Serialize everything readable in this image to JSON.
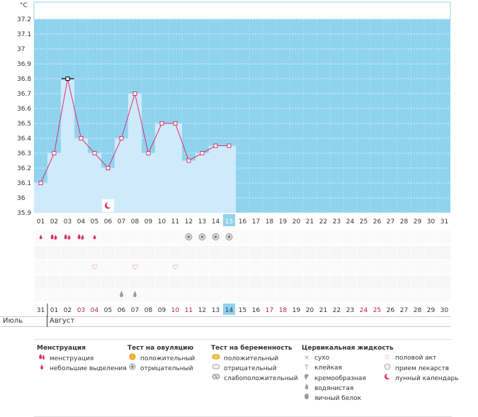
{
  "chart_data": {
    "type": "line",
    "y_unit": "°C",
    "ylim": [
      35.9,
      37.3
    ],
    "y_ticks": [
      "37.2",
      "37.1",
      "37",
      "36.9",
      "36.8",
      "36.7",
      "36.6",
      "36.5",
      "36.4",
      "36.3",
      "36.2",
      "36.1",
      "36",
      "35.9"
    ],
    "day_labels": [
      "01",
      "02",
      "03",
      "04",
      "05",
      "06",
      "07",
      "08",
      "09",
      "10",
      "11",
      "12",
      "13",
      "14",
      "15",
      "16",
      "17",
      "18",
      "19",
      "20",
      "21",
      "22",
      "23",
      "24",
      "25",
      "26",
      "27",
      "28",
      "29",
      "30",
      "31"
    ],
    "today_index": 14,
    "series": [
      {
        "values": [
          36.1,
          36.3,
          36.8,
          36.4,
          36.3,
          36.2,
          36.4,
          36.7,
          36.3,
          36.5,
          36.5,
          36.25,
          36.3,
          36.35,
          36.35
        ]
      }
    ],
    "grid": true,
    "background": "#8fd3ee",
    "line_color": "#d6336c",
    "bar_color": "#cfeafa"
  },
  "marks": {
    "menstruation": [
      0,
      1,
      2,
      3,
      4
    ],
    "menstruation_heavy": [
      1,
      2,
      3
    ],
    "lunar": [
      5
    ],
    "ovulation_negative": [
      11,
      12,
      13,
      14
    ],
    "intercourse": [
      4,
      7,
      10
    ],
    "cervical_watery": [
      6,
      7
    ]
  },
  "cycle_days": [
    {
      "label": "31",
      "red": false
    },
    {
      "label": "01",
      "red": false
    },
    {
      "label": "02",
      "red": false
    },
    {
      "label": "03",
      "red": true
    },
    {
      "label": "04",
      "red": true
    },
    {
      "label": "05",
      "red": false
    },
    {
      "label": "06",
      "red": false
    },
    {
      "label": "07",
      "red": false
    },
    {
      "label": "08",
      "red": false
    },
    {
      "label": "09",
      "red": false
    },
    {
      "label": "10",
      "red": true
    },
    {
      "label": "11",
      "red": true
    },
    {
      "label": "12",
      "red": false
    },
    {
      "label": "13",
      "red": false
    },
    {
      "label": "14",
      "red": false
    },
    {
      "label": "15",
      "red": false
    },
    {
      "label": "16",
      "red": false
    },
    {
      "label": "17",
      "red": true
    },
    {
      "label": "18",
      "red": true
    },
    {
      "label": "19",
      "red": false
    },
    {
      "label": "20",
      "red": false
    },
    {
      "label": "21",
      "red": false
    },
    {
      "label": "22",
      "red": false
    },
    {
      "label": "23",
      "red": false
    },
    {
      "label": "24",
      "red": true
    },
    {
      "label": "25",
      "red": true
    },
    {
      "label": "26",
      "red": false
    },
    {
      "label": "27",
      "red": false
    },
    {
      "label": "28",
      "red": false
    },
    {
      "label": "29",
      "red": false
    },
    {
      "label": "30",
      "red": false
    }
  ],
  "cycle_today_index": 14,
  "months": {
    "prev": "Июль",
    "current": "Август"
  },
  "legend": {
    "menstruation": {
      "title": "Менструация",
      "items": [
        "менструация",
        "небольшие выделения"
      ]
    },
    "ovulation": {
      "title": "Тест на овуляцию",
      "items": [
        "положительный",
        "отрицательный"
      ]
    },
    "pregnancy": {
      "title": "Тест на беременность",
      "items": [
        "положительный",
        "отрицательный",
        "слабоположительный"
      ]
    },
    "cervical": {
      "title": "Цервикальная жидкость",
      "items": [
        "сухо",
        "клейкая",
        "кремообразная",
        "водянистая",
        "яичный белок"
      ]
    },
    "other": {
      "items": [
        "половой акт",
        "прием лекарств",
        "лунный календарь"
      ]
    }
  },
  "colors": {
    "accent_pink": "#d6336c",
    "today_cell": "#8fd3ee"
  }
}
